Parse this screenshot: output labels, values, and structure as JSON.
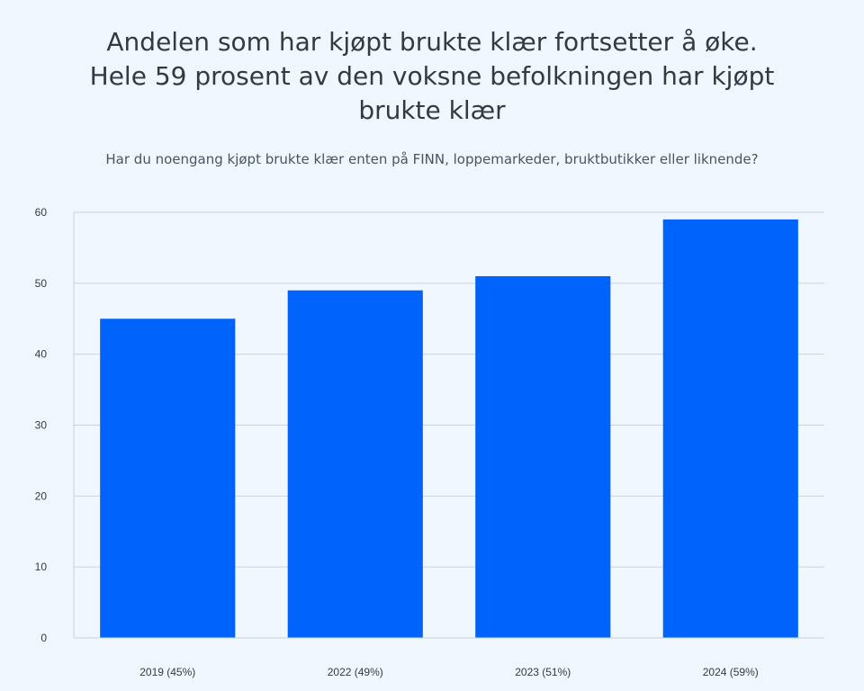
{
  "header": {
    "title_lines": [
      "Andelen som har kjøpt brukte klær fortsetter å øke.",
      "Hele 59 prosent av den voksne befolkningen har kjøpt",
      "brukte klær"
    ],
    "subtitle": "Har du noengang kjøpt brukte klær enten på FINN, loppemarkeder, bruktbutikker eller liknende?"
  },
  "chart_data": {
    "type": "bar",
    "title": "Andelen som har kjøpt brukte klær fortsetter å øke. Hele 59 prosent av den voksne befolkningen har kjøpt brukte klær",
    "subtitle": "Har du noengang kjøpt brukte klær enten på FINN, loppemarkeder, bruktbutikker eller liknende?",
    "categories": [
      "2019 (45%)",
      "2022 (49%)",
      "2023 (51%)",
      "2024 (59%)"
    ],
    "values": [
      45,
      49,
      51,
      59
    ],
    "xlabel": "",
    "ylabel": "",
    "ylim": [
      0,
      60
    ],
    "yticks": [
      0,
      10,
      20,
      30,
      40,
      50,
      60
    ],
    "grid": true,
    "legend": "none",
    "colors": {
      "bar": "#0063fb",
      "grid": "#c9d3df",
      "axis": "#c9d3df",
      "background": "#f0f7fe"
    }
  }
}
